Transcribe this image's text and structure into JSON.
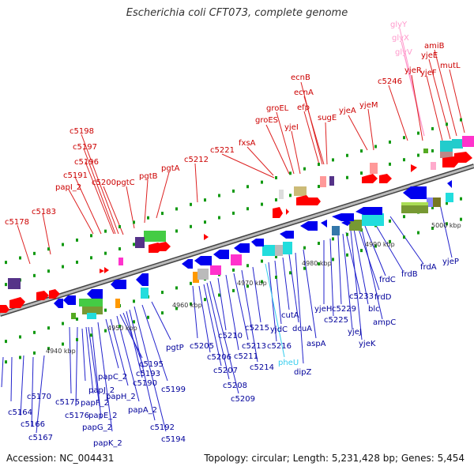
{
  "title": "Escherichia coli CFT073, complete genome",
  "accession": "Accession: NC_004431",
  "summary": "Topology: circular; Length: 5,231,428 bp; Genes: 5,454",
  "colors": {
    "forward_label": "#cc0000",
    "reverse_label": "#00009a",
    "rna_label": "#ff88cc",
    "trna_label": "#33ccee",
    "axis": "#777777",
    "tick": "#009900"
  },
  "ticks": [
    {
      "kbp": 4940,
      "label": "4940 kbp"
    },
    {
      "kbp": 4950,
      "label": "4950 kbp"
    },
    {
      "kbp": 4960,
      "label": "4960 kbp"
    },
    {
      "kbp": 4970,
      "label": "4970 kbp"
    },
    {
      "kbp": 4980,
      "label": "4980 kbp"
    },
    {
      "kbp": 4990,
      "label": "4990 kbp"
    },
    {
      "kbp": 5000,
      "label": "5000 kbp"
    }
  ],
  "forward_labels": [
    "glyY",
    "glyX",
    "glyV",
    "amiB",
    "yjeE",
    "yjeF",
    "mutL",
    "yjeR",
    "c5246",
    "ecnB",
    "ecnA",
    "efp",
    "sugE",
    "yjeA",
    "yjeM",
    "groEL",
    "groES",
    "yjeI",
    "fxsA",
    "c5221",
    "c5212",
    "pgtA",
    "pgtB",
    "pgtC",
    "c5200",
    "c5198",
    "c5197",
    "c5196",
    "c5191",
    "papI_2",
    "c5183",
    "c5178"
  ],
  "reverse_labels": [
    "c5170",
    "c5164",
    "c5166",
    "c5167",
    "c5175",
    "c5176",
    "papJ_2",
    "papF_2",
    "papE_2",
    "papG_2",
    "papK_2",
    "papC_2",
    "papH_2",
    "papA_2",
    "c5195",
    "c5193",
    "c5190",
    "c5192",
    "c5194",
    "c5199",
    "pgtP",
    "c5205",
    "c5206",
    "c5207",
    "c5208",
    "c5209",
    "c5210",
    "c5211",
    "c5213",
    "c5214",
    "c5215",
    "c5216",
    "yjdC",
    "pheU",
    "cutA",
    "dcuA",
    "dipZ",
    "aspA",
    "yjeH",
    "c5225",
    "yjeJ",
    "c5229",
    "yjeK",
    "c5233",
    "blc",
    "frdD",
    "ampC",
    "frdC",
    "frdB",
    "frdA",
    "yjeP"
  ]
}
